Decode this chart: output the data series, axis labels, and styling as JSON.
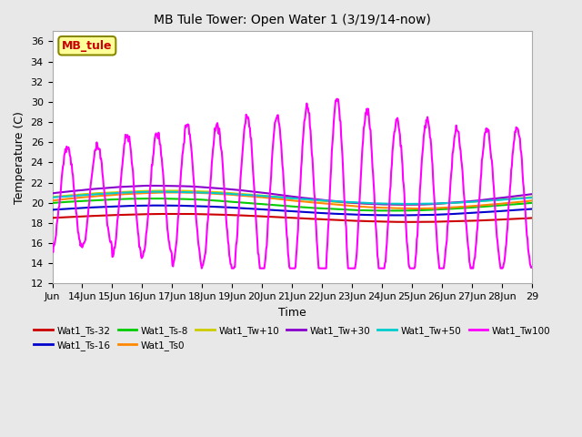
{
  "title": "MB Tule Tower: Open Water 1 (3/19/14-now)",
  "xlabel": "Time",
  "ylabel": "Temperature (C)",
  "ylim": [
    12,
    37
  ],
  "yticks": [
    12,
    14,
    16,
    18,
    20,
    22,
    24,
    26,
    28,
    30,
    32,
    34,
    36
  ],
  "bg_color": "#e8e8e8",
  "plot_bg": "#ffffff",
  "grid_color": "#ffffff",
  "series_order": [
    "Wat1_Ts-32",
    "Wat1_Ts-16",
    "Wat1_Ts-8",
    "Wat1_Ts0",
    "Wat1_Tw+10",
    "Wat1_Tw+30",
    "Wat1_Tw+50",
    "Wat1_Tw100"
  ],
  "series": {
    "Wat1_Ts-32": {
      "color": "#cc0000",
      "lw": 1.5
    },
    "Wat1_Ts-16": {
      "color": "#0000cc",
      "lw": 1.5
    },
    "Wat1_Ts-8": {
      "color": "#00cc00",
      "lw": 1.5
    },
    "Wat1_Ts0": {
      "color": "#ff8800",
      "lw": 1.5
    },
    "Wat1_Tw+10": {
      "color": "#cccc00",
      "lw": 1.5
    },
    "Wat1_Tw+30": {
      "color": "#8800cc",
      "lw": 1.5
    },
    "Wat1_Tw+50": {
      "color": "#00cccc",
      "lw": 1.5
    },
    "Wat1_Tw100": {
      "color": "#ff00ff",
      "lw": 1.5
    }
  },
  "annotation_box": {
    "text": "MB_tule",
    "color": "#cc0000",
    "bg": "#ffff99",
    "ec": "#888800"
  },
  "xtick_positions": [
    0,
    1,
    2,
    3,
    4,
    5,
    6,
    7,
    8,
    9,
    10,
    11,
    12,
    13,
    14,
    15,
    16
  ],
  "xtick_labels": [
    "Jun",
    "14Jun",
    "15Jun",
    "16Jun",
    "17Jun",
    "18Jun",
    "19Jun",
    "20Jun",
    "21Jun",
    "22Jun",
    "23Jun",
    "24Jun",
    "25Jun",
    "26Jun",
    "27Jun",
    "28Jun",
    "29"
  ],
  "xlim": [
    0,
    16
  ],
  "legend_entries": [
    {
      "label": "Wat1_Ts-32",
      "color": "#cc0000"
    },
    {
      "label": "Wat1_Ts-16",
      "color": "#0000cc"
    },
    {
      "label": "Wat1_Ts-8",
      "color": "#00cc00"
    },
    {
      "label": "Wat1_Ts0",
      "color": "#ff8800"
    },
    {
      "label": "Wat1_Tw+10",
      "color": "#cccc00"
    },
    {
      "label": "Wat1_Tw+30",
      "color": "#8800cc"
    },
    {
      "label": "Wat1_Tw+50",
      "color": "#00cccc"
    },
    {
      "label": "Wat1_Tw100",
      "color": "#ff00ff"
    }
  ]
}
